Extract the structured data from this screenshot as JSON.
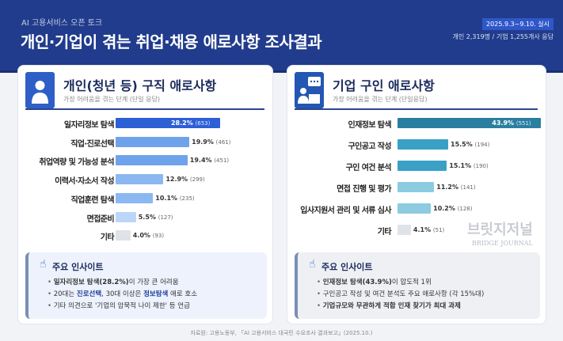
{
  "header": {
    "subtitle": "AI 고용서비스 오픈 토크",
    "title": "개인·기업이 겪는 취업·채용 애로사항 조사결과",
    "date": "2025.9.3~9.10. 실시",
    "respondents": "개인 2,319명 / 기업 1,255개사 응답"
  },
  "left": {
    "title": "개인(청년 등) 구직 애로사항",
    "subtitle": "가장 어려움을 겪는 단계 (단일 응답)",
    "icon": "person-icon",
    "rows": [
      {
        "label": "일자리정보 탐색",
        "pct": "28.2%",
        "n": "(653)",
        "value": 28.2,
        "color": "#2d5fd6"
      },
      {
        "label": "직업·진로선택",
        "pct": "19.9%",
        "n": "(461)",
        "value": 19.9,
        "color": "#6ea3ec"
      },
      {
        "label": "취업역량 및 가능성 분석",
        "pct": "19.4%",
        "n": "(451)",
        "value": 19.4,
        "color": "#6ea3ec"
      },
      {
        "label": "이력서·자소서 작성",
        "pct": "12.9%",
        "n": "(299)",
        "value": 12.9,
        "color": "#8cb8f1"
      },
      {
        "label": "직업훈련 탐색",
        "pct": "10.1%",
        "n": "(235)",
        "value": 10.1,
        "color": "#8cb8f1"
      },
      {
        "label": "면접준비",
        "pct": "5.5%",
        "n": "(127)",
        "value": 5.5,
        "color": "#bcd6f7"
      },
      {
        "label": "기타",
        "pct": "4.0%",
        "n": "(93)",
        "value": 4.0,
        "color": "#dfe3e8"
      }
    ],
    "insight_title": "주요 인사이트",
    "insights": [
      [
        "일자리정보 탐색(28.2%)",
        "이 가장 큰 어려움",
        "",
        ""
      ],
      [
        "20대는 ",
        "진로선택",
        ", 30대 이상은 ",
        "정보탐색",
        " 애로 호소"
      ],
      [
        "기타 의견으로 '기업의 암묵적 나이 제한' 등 언급"
      ]
    ]
  },
  "right": {
    "title": "기업 구인 애로사항",
    "subtitle": "가장 어려움을 겪는 단계 (단일응답)",
    "icon": "chat-person-icon",
    "rows": [
      {
        "label": "인재정보 탐색",
        "pct": "43.9%",
        "n": "(551)",
        "value": 43.9,
        "color": "#2a7fa0"
      },
      {
        "label": "구인공고 작성",
        "pct": "15.5%",
        "n": "(194)",
        "value": 15.5,
        "color": "#3aa0c6"
      },
      {
        "label": "구인 여건 분석",
        "pct": "15.1%",
        "n": "(190)",
        "value": 15.1,
        "color": "#3aa0c6"
      },
      {
        "label": "면접 진행 및 평가",
        "pct": "11.2%",
        "n": "(141)",
        "value": 11.2,
        "color": "#8ccbe0"
      },
      {
        "label": "입사지원서 관리 및 서류 심사",
        "pct": "10.2%",
        "n": "(128)",
        "value": 10.2,
        "color": "#8ccbe0"
      },
      {
        "label": "기타",
        "pct": "4.1%",
        "n": "(51)",
        "value": 4.1,
        "color": "#dfe3e8"
      }
    ],
    "insight_title": "주요 인사이트",
    "insights": [
      [
        "인재정보 탐색(43.9%)",
        "이 압도적 1위"
      ],
      [
        "구인공고 작성 및 여건 분석도 주요 애로사항 (각 15%대)"
      ],
      [
        "기업규모와 무관",
        "하게 적합 인재 찾기가 최대 과제"
      ]
    ]
  },
  "footer": "자료원: 고용노동부, 「AI 고용서비스 대국민 수요조사 결과보고」(2025.10.)",
  "watermark": {
    "name": "브릿지저널",
    "sub": "BRIDGE JOURNAL"
  }
}
